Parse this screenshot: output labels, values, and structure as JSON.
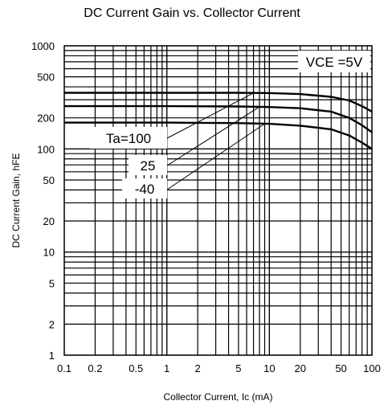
{
  "chart_data": {
    "type": "line",
    "title": "DC Current Gain vs. Collector Current",
    "xlabel": "Collector Current, Ic (mA)",
    "ylabel": "DC Current Gain,  hFE",
    "x_scale": "log",
    "y_scale": "log",
    "xlim": [
      0.1,
      100
    ],
    "ylim": [
      1,
      1000
    ],
    "grid": true,
    "x_ticks": [
      {
        "value": 0.1,
        "label": "0.1"
      },
      {
        "value": 0.2,
        "label": "0.2"
      },
      {
        "value": 0.5,
        "label": "0.5"
      },
      {
        "value": 1,
        "label": "1"
      },
      {
        "value": 2,
        "label": "2"
      },
      {
        "value": 5,
        "label": "5"
      },
      {
        "value": 10,
        "label": "10"
      },
      {
        "value": 20,
        "label": "20"
      },
      {
        "value": 50,
        "label": "50"
      },
      {
        "value": 100,
        "label": "100"
      }
    ],
    "y_ticks": [
      {
        "value": 1,
        "label": "1"
      },
      {
        "value": 2,
        "label": "2"
      },
      {
        "value": 5,
        "label": "5"
      },
      {
        "value": 10,
        "label": "10"
      },
      {
        "value": 20,
        "label": "20"
      },
      {
        "value": 50,
        "label": "50"
      },
      {
        "value": 100,
        "label": "100"
      },
      {
        "value": 200,
        "label": "200"
      },
      {
        "value": 500,
        "label": "500"
      },
      {
        "value": 1000,
        "label": "1000"
      }
    ],
    "series": [
      {
        "name": "Ta=100",
        "x": [
          0.1,
          1,
          5,
          10,
          20,
          40,
          60,
          80,
          100
        ],
        "values": [
          350,
          350,
          350,
          348,
          340,
          320,
          295,
          260,
          230
        ]
      },
      {
        "name": "25",
        "x": [
          0.1,
          1,
          5,
          10,
          20,
          40,
          60,
          80,
          100
        ],
        "values": [
          260,
          260,
          258,
          255,
          248,
          230,
          200,
          170,
          145
        ]
      },
      {
        "name": "-40",
        "x": [
          0.1,
          1,
          5,
          10,
          20,
          40,
          60,
          80,
          100
        ],
        "values": [
          180,
          180,
          178,
          175,
          168,
          155,
          135,
          115,
          100
        ]
      }
    ],
    "annotations": {
      "condition": "VCE =5V",
      "labels": [
        "Ta=100",
        "25",
        "-40"
      ]
    }
  }
}
